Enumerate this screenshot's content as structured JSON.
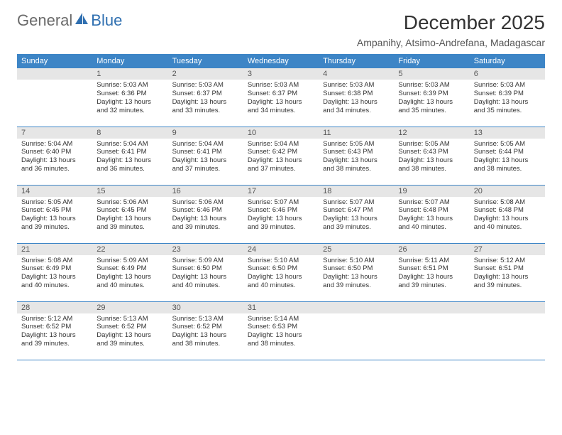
{
  "brand": {
    "general": "General",
    "blue": "Blue"
  },
  "title": "December 2025",
  "subtitle": "Ampanihy, Atsimo-Andrefana, Madagascar",
  "dow": [
    "Sunday",
    "Monday",
    "Tuesday",
    "Wednesday",
    "Thursday",
    "Friday",
    "Saturday"
  ],
  "colors": {
    "header_bg": "#3d85c6",
    "header_fg": "#ffffff",
    "daynum_bg": "#e6e6e6",
    "rule": "#3d85c6"
  },
  "weeks": [
    [
      {
        "n": "",
        "sr": "",
        "ss": "",
        "dl": ""
      },
      {
        "n": "1",
        "sr": "Sunrise: 5:03 AM",
        "ss": "Sunset: 6:36 PM",
        "dl": "Daylight: 13 hours and 32 minutes."
      },
      {
        "n": "2",
        "sr": "Sunrise: 5:03 AM",
        "ss": "Sunset: 6:37 PM",
        "dl": "Daylight: 13 hours and 33 minutes."
      },
      {
        "n": "3",
        "sr": "Sunrise: 5:03 AM",
        "ss": "Sunset: 6:37 PM",
        "dl": "Daylight: 13 hours and 34 minutes."
      },
      {
        "n": "4",
        "sr": "Sunrise: 5:03 AM",
        "ss": "Sunset: 6:38 PM",
        "dl": "Daylight: 13 hours and 34 minutes."
      },
      {
        "n": "5",
        "sr": "Sunrise: 5:03 AM",
        "ss": "Sunset: 6:39 PM",
        "dl": "Daylight: 13 hours and 35 minutes."
      },
      {
        "n": "6",
        "sr": "Sunrise: 5:03 AM",
        "ss": "Sunset: 6:39 PM",
        "dl": "Daylight: 13 hours and 35 minutes."
      }
    ],
    [
      {
        "n": "7",
        "sr": "Sunrise: 5:04 AM",
        "ss": "Sunset: 6:40 PM",
        "dl": "Daylight: 13 hours and 36 minutes."
      },
      {
        "n": "8",
        "sr": "Sunrise: 5:04 AM",
        "ss": "Sunset: 6:41 PM",
        "dl": "Daylight: 13 hours and 36 minutes."
      },
      {
        "n": "9",
        "sr": "Sunrise: 5:04 AM",
        "ss": "Sunset: 6:41 PM",
        "dl": "Daylight: 13 hours and 37 minutes."
      },
      {
        "n": "10",
        "sr": "Sunrise: 5:04 AM",
        "ss": "Sunset: 6:42 PM",
        "dl": "Daylight: 13 hours and 37 minutes."
      },
      {
        "n": "11",
        "sr": "Sunrise: 5:05 AM",
        "ss": "Sunset: 6:43 PM",
        "dl": "Daylight: 13 hours and 38 minutes."
      },
      {
        "n": "12",
        "sr": "Sunrise: 5:05 AM",
        "ss": "Sunset: 6:43 PM",
        "dl": "Daylight: 13 hours and 38 minutes."
      },
      {
        "n": "13",
        "sr": "Sunrise: 5:05 AM",
        "ss": "Sunset: 6:44 PM",
        "dl": "Daylight: 13 hours and 38 minutes."
      }
    ],
    [
      {
        "n": "14",
        "sr": "Sunrise: 5:05 AM",
        "ss": "Sunset: 6:45 PM",
        "dl": "Daylight: 13 hours and 39 minutes."
      },
      {
        "n": "15",
        "sr": "Sunrise: 5:06 AM",
        "ss": "Sunset: 6:45 PM",
        "dl": "Daylight: 13 hours and 39 minutes."
      },
      {
        "n": "16",
        "sr": "Sunrise: 5:06 AM",
        "ss": "Sunset: 6:46 PM",
        "dl": "Daylight: 13 hours and 39 minutes."
      },
      {
        "n": "17",
        "sr": "Sunrise: 5:07 AM",
        "ss": "Sunset: 6:46 PM",
        "dl": "Daylight: 13 hours and 39 minutes."
      },
      {
        "n": "18",
        "sr": "Sunrise: 5:07 AM",
        "ss": "Sunset: 6:47 PM",
        "dl": "Daylight: 13 hours and 39 minutes."
      },
      {
        "n": "19",
        "sr": "Sunrise: 5:07 AM",
        "ss": "Sunset: 6:48 PM",
        "dl": "Daylight: 13 hours and 40 minutes."
      },
      {
        "n": "20",
        "sr": "Sunrise: 5:08 AM",
        "ss": "Sunset: 6:48 PM",
        "dl": "Daylight: 13 hours and 40 minutes."
      }
    ],
    [
      {
        "n": "21",
        "sr": "Sunrise: 5:08 AM",
        "ss": "Sunset: 6:49 PM",
        "dl": "Daylight: 13 hours and 40 minutes."
      },
      {
        "n": "22",
        "sr": "Sunrise: 5:09 AM",
        "ss": "Sunset: 6:49 PM",
        "dl": "Daylight: 13 hours and 40 minutes."
      },
      {
        "n": "23",
        "sr": "Sunrise: 5:09 AM",
        "ss": "Sunset: 6:50 PM",
        "dl": "Daylight: 13 hours and 40 minutes."
      },
      {
        "n": "24",
        "sr": "Sunrise: 5:10 AM",
        "ss": "Sunset: 6:50 PM",
        "dl": "Daylight: 13 hours and 40 minutes."
      },
      {
        "n": "25",
        "sr": "Sunrise: 5:10 AM",
        "ss": "Sunset: 6:50 PM",
        "dl": "Daylight: 13 hours and 39 minutes."
      },
      {
        "n": "26",
        "sr": "Sunrise: 5:11 AM",
        "ss": "Sunset: 6:51 PM",
        "dl": "Daylight: 13 hours and 39 minutes."
      },
      {
        "n": "27",
        "sr": "Sunrise: 5:12 AM",
        "ss": "Sunset: 6:51 PM",
        "dl": "Daylight: 13 hours and 39 minutes."
      }
    ],
    [
      {
        "n": "28",
        "sr": "Sunrise: 5:12 AM",
        "ss": "Sunset: 6:52 PM",
        "dl": "Daylight: 13 hours and 39 minutes."
      },
      {
        "n": "29",
        "sr": "Sunrise: 5:13 AM",
        "ss": "Sunset: 6:52 PM",
        "dl": "Daylight: 13 hours and 39 minutes."
      },
      {
        "n": "30",
        "sr": "Sunrise: 5:13 AM",
        "ss": "Sunset: 6:52 PM",
        "dl": "Daylight: 13 hours and 38 minutes."
      },
      {
        "n": "31",
        "sr": "Sunrise: 5:14 AM",
        "ss": "Sunset: 6:53 PM",
        "dl": "Daylight: 13 hours and 38 minutes."
      },
      {
        "n": "",
        "sr": "",
        "ss": "",
        "dl": ""
      },
      {
        "n": "",
        "sr": "",
        "ss": "",
        "dl": ""
      },
      {
        "n": "",
        "sr": "",
        "ss": "",
        "dl": ""
      }
    ]
  ]
}
